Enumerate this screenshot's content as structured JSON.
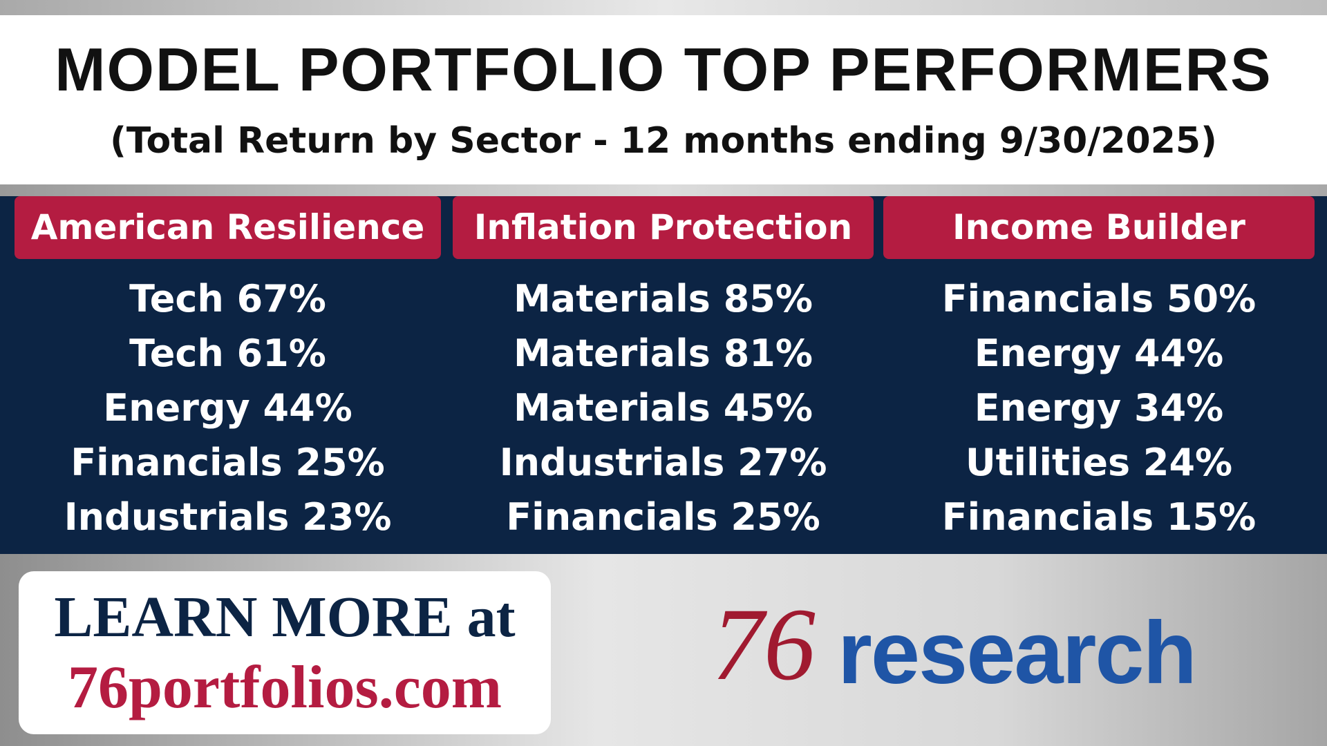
{
  "header": {
    "title": "MODEL PORTFOLIO TOP PERFORMERS",
    "subtitle": "(Total Return by Sector - 12 months ending 9/30/2025)"
  },
  "columns": [
    {
      "name": "American Resilience",
      "items": [
        "Tech 67%",
        "Tech 61%",
        "Energy 44%",
        "Financials 25%",
        "Industrials 23%"
      ]
    },
    {
      "name": "Inflation Protection",
      "items": [
        "Materials 85%",
        "Materials 81%",
        "Materials 45%",
        "Industrials 27%",
        "Financials 25%"
      ]
    },
    {
      "name": "Income Builder",
      "items": [
        "Financials 50%",
        "Energy 44%",
        "Energy 34%",
        "Utilities 24%",
        "Financials 15%"
      ]
    }
  ],
  "footer": {
    "cta": "LEARN MORE at",
    "url": "76portfolios.com",
    "logo_number": "76",
    "logo_word": "research"
  }
}
